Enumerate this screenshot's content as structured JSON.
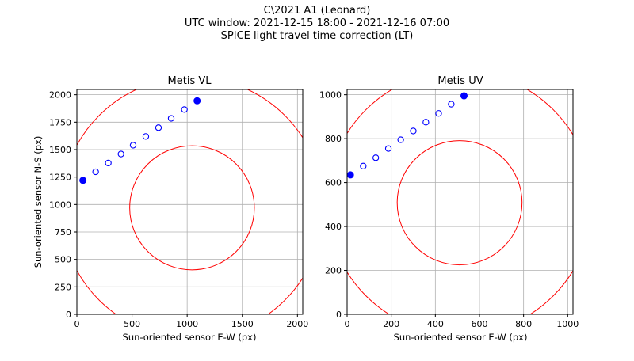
{
  "figure": {
    "title_lines": [
      "C\\2021 A1 (Leonard)",
      "UTC window: 2021-12-15 18:00 - 2021-12-16 07:00",
      "SPICE light travel time correction (LT)"
    ]
  },
  "colors": {
    "points": "#0000ff",
    "circles": "#ff0000",
    "grid": "#b0b0b0"
  },
  "chart_data": [
    {
      "type": "scatter",
      "title": "Metis VL",
      "xlabel": "Sun-oriented sensor E-W (px)",
      "ylabel": "Sun-oriented sensor N-S (px)",
      "xlim": [
        0,
        2048
      ],
      "ylim": [
        0,
        2048
      ],
      "xticks": [
        0,
        500,
        1000,
        1500,
        2000
      ],
      "yticks": [
        0,
        250,
        500,
        750,
        1000,
        1250,
        1500,
        1750,
        2000
      ],
      "grid": true,
      "points_filled": [
        [
          55,
          1220
        ],
        [
          1090,
          1945
        ]
      ],
      "points_open": [
        [
          170,
          1298
        ],
        [
          285,
          1378
        ],
        [
          400,
          1460
        ],
        [
          510,
          1540
        ],
        [
          625,
          1620
        ],
        [
          740,
          1700
        ],
        [
          855,
          1785
        ],
        [
          975,
          1865
        ]
      ],
      "circles": [
        {
          "cx": 1044,
          "cy": 970,
          "r": 565
        },
        {
          "cx": 1044,
          "cy": 970,
          "r": 1190
        }
      ]
    },
    {
      "type": "scatter",
      "title": "Metis UV",
      "xlabel": "Sun-oriented sensor E-W (px)",
      "ylabel": "",
      "xlim": [
        0,
        1024
      ],
      "ylim": [
        0,
        1024
      ],
      "xticks": [
        0,
        200,
        400,
        600,
        800,
        1000
      ],
      "yticks": [
        0,
        200,
        400,
        600,
        800,
        1000
      ],
      "grid": true,
      "points_filled": [
        [
          15,
          635
        ],
        [
          530,
          995
        ]
      ],
      "points_open": [
        [
          73,
          675
        ],
        [
          130,
          713
        ],
        [
          187,
          755
        ],
        [
          243,
          795
        ],
        [
          300,
          835
        ],
        [
          357,
          875
        ],
        [
          415,
          915
        ],
        [
          472,
          957
        ]
      ],
      "circles": [
        {
          "cx": 510,
          "cy": 508,
          "r": 283
        },
        {
          "cx": 510,
          "cy": 508,
          "r": 600
        }
      ]
    }
  ]
}
